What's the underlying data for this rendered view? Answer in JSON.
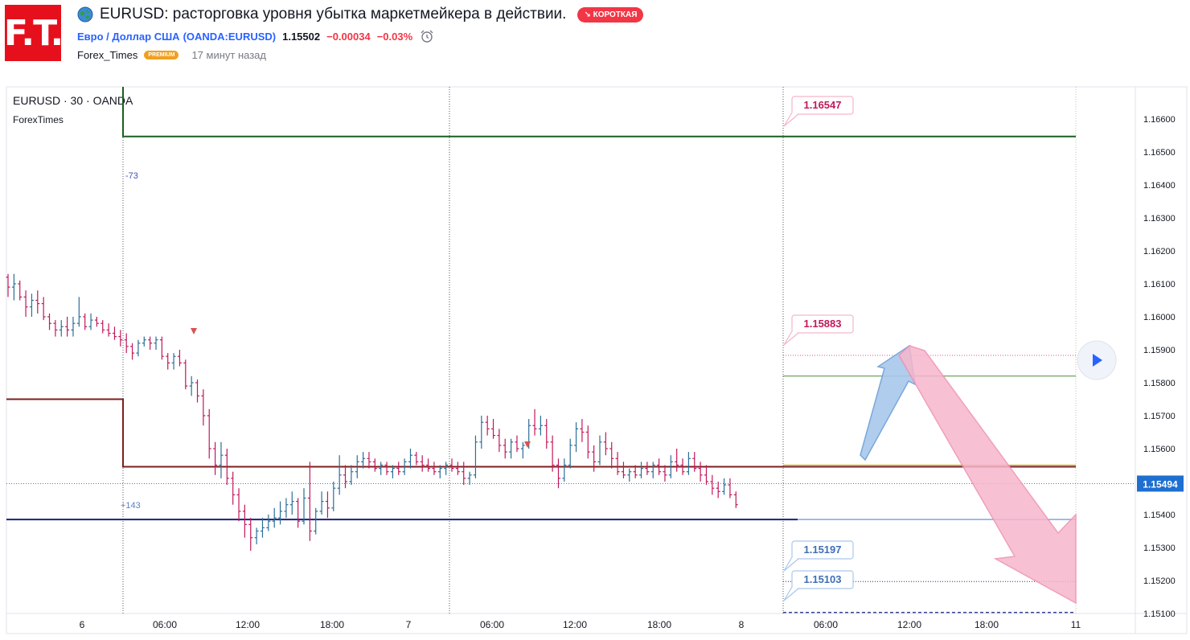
{
  "header": {
    "logo_text": "F.T.",
    "title": "EURUSD: расторговка уровня убытка маркетмейкера в действии.",
    "badge": "↘ КОРОТКАЯ",
    "symbol_link": "Евро / Доллар США",
    "symbol_code": "(OANDA:EURUSD)",
    "price": "1.15502",
    "change": "−0.00034",
    "change_pct": "−0.03%",
    "author": "Forex_Times",
    "author_badge": "PREMIUM",
    "time_ago": "17 минут назад"
  },
  "colors": {
    "up": "#2a6f97",
    "down": "#c2185b",
    "short_badge": "#f23645",
    "link": "#2962ff"
  },
  "chart_data": {
    "type": "bar",
    "symbol": "EURUSD · 30 · OANDA",
    "indicator": "ForexTimes",
    "x_ticks": [
      "6",
      "06:00",
      "12:00",
      "18:00",
      "7",
      "06:00",
      "12:00",
      "18:00",
      "8",
      "06:00",
      "12:00",
      "18:00",
      "11"
    ],
    "y_ticks": [
      "1.16600",
      "1.16500",
      "1.16400",
      "1.16300",
      "1.16200",
      "1.16100",
      "1.16000",
      "1.15900",
      "1.15800",
      "1.15700",
      "1.15600",
      "1.15500",
      "1.15400",
      "1.15300",
      "1.15200",
      "1.15100"
    ],
    "ylim": [
      1.1507,
      1.1672
    ],
    "last_price": "1.15494",
    "level_labels": [
      "1.16547",
      "1.15883",
      "1.15197",
      "1.15103"
    ],
    "annotations": [
      "-73",
      "+143"
    ],
    "levels": {
      "green_top": 1.16547,
      "red_upper": 1.1575,
      "red_mid": 1.15545,
      "blue": 1.15385,
      "target_up": 1.15883,
      "green_mid": 1.1582,
      "target_low1": 1.15197,
      "target_low2": 1.15103
    },
    "bars_ohlc": [
      [
        1.1612,
        1.1613,
        1.1606,
        1.1609
      ],
      [
        1.1609,
        1.1613,
        1.1605,
        1.161
      ],
      [
        1.161,
        1.1611,
        1.1605,
        1.1606
      ],
      [
        1.1606,
        1.1608,
        1.16,
        1.1603
      ],
      [
        1.1603,
        1.1607,
        1.16,
        1.1605
      ],
      [
        1.1605,
        1.1608,
        1.1601,
        1.1604
      ],
      [
        1.1604,
        1.1606,
        1.1599,
        1.16
      ],
      [
        1.16,
        1.1601,
        1.1596,
        1.1598
      ],
      [
        1.1598,
        1.1599,
        1.1594,
        1.1596
      ],
      [
        1.1596,
        1.1599,
        1.1594,
        1.1597
      ],
      [
        1.1597,
        1.16,
        1.1594,
        1.1596
      ],
      [
        1.1596,
        1.16,
        1.1594,
        1.1598
      ],
      [
        1.1598,
        1.1606,
        1.1597,
        1.16
      ],
      [
        1.16,
        1.1601,
        1.1596,
        1.1597
      ],
      [
        1.1597,
        1.1601,
        1.1596,
        1.1599
      ],
      [
        1.1599,
        1.16,
        1.1597,
        1.1598
      ],
      [
        1.1598,
        1.1599,
        1.1595,
        1.1596
      ],
      [
        1.1596,
        1.1598,
        1.1594,
        1.1595
      ],
      [
        1.1595,
        1.1597,
        1.1593,
        1.1594
      ],
      [
        1.1594,
        1.1596,
        1.1591,
        1.1593
      ],
      [
        1.1593,
        1.1595,
        1.1589,
        1.1591
      ],
      [
        1.1591,
        1.1592,
        1.1587,
        1.1589
      ],
      [
        1.1589,
        1.1593,
        1.1588,
        1.1592
      ],
      [
        1.1592,
        1.1594,
        1.1591,
        1.1593
      ],
      [
        1.1593,
        1.1594,
        1.159,
        1.1592
      ],
      [
        1.1592,
        1.1594,
        1.159,
        1.1593
      ],
      [
        1.1593,
        1.1594,
        1.1587,
        1.1588
      ],
      [
        1.1588,
        1.1589,
        1.1584,
        1.1586
      ],
      [
        1.1586,
        1.1589,
        1.1584,
        1.1588
      ],
      [
        1.1588,
        1.159,
        1.1585,
        1.1586
      ],
      [
        1.1586,
        1.1587,
        1.1578,
        1.1579
      ],
      [
        1.1579,
        1.1582,
        1.1576,
        1.158
      ],
      [
        1.158,
        1.1581,
        1.1574,
        1.1576
      ],
      [
        1.1576,
        1.1578,
        1.1567,
        1.157
      ],
      [
        1.157,
        1.1572,
        1.1557,
        1.156
      ],
      [
        1.156,
        1.1562,
        1.1552,
        1.1555
      ],
      [
        1.1555,
        1.1562,
        1.1551,
        1.1558
      ],
      [
        1.1558,
        1.156,
        1.1549,
        1.1551
      ],
      [
        1.1551,
        1.1553,
        1.1543,
        1.1546
      ],
      [
        1.1546,
        1.1548,
        1.1538,
        1.1541
      ],
      [
        1.1541,
        1.1543,
        1.1533,
        1.1537
      ],
      [
        1.1537,
        1.1539,
        1.1529,
        1.1533
      ],
      [
        1.1533,
        1.1536,
        1.1531,
        1.1535
      ],
      [
        1.1535,
        1.1539,
        1.1533,
        1.1536
      ],
      [
        1.1536,
        1.154,
        1.1535,
        1.1538
      ],
      [
        1.1538,
        1.1542,
        1.1536,
        1.1539
      ],
      [
        1.1539,
        1.1544,
        1.1537,
        1.1541
      ],
      [
        1.1541,
        1.1545,
        1.1539,
        1.1543
      ],
      [
        1.1543,
        1.1547,
        1.154,
        1.1544
      ],
      [
        1.1544,
        1.1545,
        1.1536,
        1.1538
      ],
      [
        1.1538,
        1.1548,
        1.1537,
        1.1545
      ],
      [
        1.1545,
        1.1556,
        1.1532,
        1.1535
      ],
      [
        1.1535,
        1.1542,
        1.1534,
        1.1541
      ],
      [
        1.1541,
        1.1547,
        1.154,
        1.1544
      ],
      [
        1.1544,
        1.1547,
        1.1539,
        1.1542
      ],
      [
        1.1542,
        1.155,
        1.1541,
        1.1548
      ],
      [
        1.1548,
        1.1558,
        1.1546,
        1.1552
      ],
      [
        1.1552,
        1.1555,
        1.1548,
        1.155
      ],
      [
        1.155,
        1.1555,
        1.1549,
        1.1553
      ],
      [
        1.1553,
        1.1558,
        1.1551,
        1.1556
      ],
      [
        1.1556,
        1.1559,
        1.1554,
        1.1557
      ],
      [
        1.1557,
        1.1559,
        1.1554,
        1.1556
      ],
      [
        1.1556,
        1.1557,
        1.1553,
        1.1554
      ],
      [
        1.1554,
        1.1556,
        1.1552,
        1.1555
      ],
      [
        1.1555,
        1.1556,
        1.1552,
        1.1553
      ],
      [
        1.1553,
        1.1555,
        1.1551,
        1.1554
      ],
      [
        1.1554,
        1.1556,
        1.1552,
        1.1553
      ],
      [
        1.1553,
        1.1557,
        1.1552,
        1.1556
      ],
      [
        1.1556,
        1.156,
        1.1554,
        1.1558
      ],
      [
        1.1558,
        1.1559,
        1.1555,
        1.1556
      ],
      [
        1.1556,
        1.1558,
        1.1553,
        1.1555
      ],
      [
        1.1555,
        1.1557,
        1.1553,
        1.1554
      ],
      [
        1.1554,
        1.1556,
        1.1552,
        1.1553
      ],
      [
        1.1553,
        1.1555,
        1.1551,
        1.1554
      ],
      [
        1.1554,
        1.1556,
        1.1552,
        1.1555
      ],
      [
        1.1555,
        1.1557,
        1.1553,
        1.1554
      ],
      [
        1.1554,
        1.1556,
        1.1552,
        1.1553
      ],
      [
        1.1553,
        1.1556,
        1.1549,
        1.1551
      ],
      [
        1.1551,
        1.1553,
        1.1549,
        1.1552
      ],
      [
        1.1552,
        1.1564,
        1.1551,
        1.1562
      ],
      [
        1.1562,
        1.157,
        1.156,
        1.1568
      ],
      [
        1.1568,
        1.157,
        1.1564,
        1.1566
      ],
      [
        1.1566,
        1.1569,
        1.1563,
        1.1564
      ],
      [
        1.1564,
        1.1566,
        1.1559,
        1.1561
      ],
      [
        1.1561,
        1.1563,
        1.1557,
        1.1559
      ],
      [
        1.1559,
        1.1563,
        1.1557,
        1.1562
      ],
      [
        1.1562,
        1.1564,
        1.1559,
        1.156
      ],
      [
        1.156,
        1.1562,
        1.1557,
        1.1561
      ],
      [
        1.1561,
        1.1569,
        1.156,
        1.1567
      ],
      [
        1.1567,
        1.1572,
        1.1564,
        1.1566
      ],
      [
        1.1566,
        1.157,
        1.1564,
        1.1567
      ],
      [
        1.1567,
        1.1569,
        1.156,
        1.1562
      ],
      [
        1.1562,
        1.1564,
        1.1553,
        1.1555
      ],
      [
        1.1555,
        1.1557,
        1.1548,
        1.1551
      ],
      [
        1.1551,
        1.1557,
        1.155,
        1.1555
      ],
      [
        1.1555,
        1.1563,
        1.1554,
        1.1561
      ],
      [
        1.1561,
        1.1568,
        1.1559,
        1.1566
      ],
      [
        1.1566,
        1.1569,
        1.1562,
        1.1565
      ],
      [
        1.1565,
        1.1567,
        1.1557,
        1.1559
      ],
      [
        1.1559,
        1.1561,
        1.1553,
        1.1556
      ],
      [
        1.1556,
        1.1564,
        1.1555,
        1.1562
      ],
      [
        1.1562,
        1.1565,
        1.1558,
        1.156
      ],
      [
        1.156,
        1.1562,
        1.1554,
        1.1557
      ],
      [
        1.1557,
        1.1559,
        1.1552,
        1.1553
      ],
      [
        1.1553,
        1.1556,
        1.1551,
        1.1552
      ],
      [
        1.1552,
        1.1554,
        1.155,
        1.1553
      ],
      [
        1.1553,
        1.1555,
        1.1551,
        1.1552
      ],
      [
        1.1552,
        1.1556,
        1.1551,
        1.1554
      ],
      [
        1.1554,
        1.1556,
        1.1552,
        1.1553
      ],
      [
        1.1553,
        1.1556,
        1.1551,
        1.1555
      ],
      [
        1.1555,
        1.1557,
        1.1552,
        1.1553
      ],
      [
        1.1553,
        1.1555,
        1.155,
        1.1552
      ],
      [
        1.1552,
        1.1558,
        1.1551,
        1.1556
      ],
      [
        1.1556,
        1.156,
        1.1553,
        1.1555
      ],
      [
        1.1555,
        1.1557,
        1.1552,
        1.1553
      ],
      [
        1.1553,
        1.1559,
        1.1552,
        1.1557
      ],
      [
        1.1557,
        1.1559,
        1.1553,
        1.1554
      ],
      [
        1.1554,
        1.1556,
        1.155,
        1.1552
      ],
      [
        1.1552,
        1.1555,
        1.1549,
        1.155
      ],
      [
        1.155,
        1.1552,
        1.1546,
        1.1548
      ],
      [
        1.1548,
        1.155,
        1.1545,
        1.1547
      ],
      [
        1.1547,
        1.1551,
        1.1546,
        1.1549
      ],
      [
        1.1549,
        1.1551,
        1.1545,
        1.1546
      ],
      [
        1.1546,
        1.1547,
        1.1542,
        1.1543
      ]
    ]
  }
}
